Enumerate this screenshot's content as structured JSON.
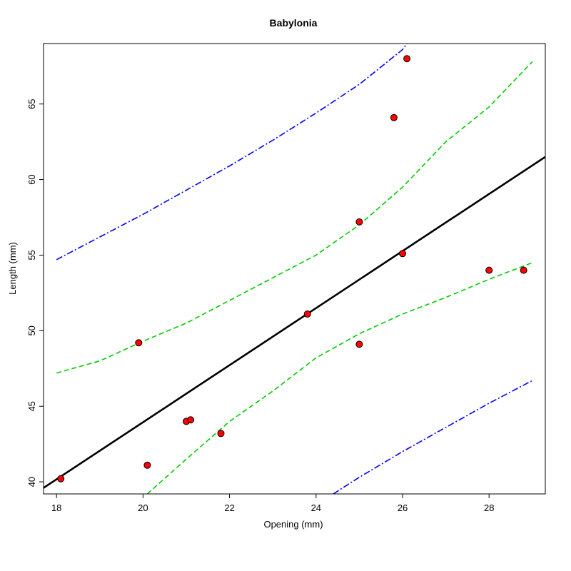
{
  "chart_data": {
    "type": "scatter",
    "title": "Babylonia",
    "xlabel": "Opening (mm)",
    "ylabel": "Length (mm)",
    "xlim": [
      17.7,
      29.3
    ],
    "ylim": [
      39.2,
      69.0
    ],
    "xticks": [
      18,
      20,
      22,
      24,
      26,
      28
    ],
    "yticks": [
      40,
      45,
      50,
      55,
      60,
      65
    ],
    "grid": false,
    "colors": {
      "points_fill": "#ff0000",
      "points_stroke": "#000000",
      "fit_line": "#000000",
      "confidence_band": "#00cc00",
      "prediction_band": "#0000ff"
    },
    "series": [
      {
        "kind": "points",
        "x": [
          18.1,
          19.9,
          20.1,
          21.0,
          21.1,
          21.8,
          23.8,
          25.0,
          25.0,
          25.8,
          26.0,
          26.1,
          28.0,
          28.8
        ],
        "y": [
          40.2,
          49.2,
          41.1,
          44.0,
          44.1,
          43.2,
          51.1,
          49.1,
          57.2,
          64.1,
          55.1,
          68.0,
          54.0,
          54.0
        ]
      },
      {
        "kind": "fit",
        "x": [
          17.7,
          29.3
        ],
        "y": [
          39.6,
          61.5
        ]
      },
      {
        "kind": "confidence_upper",
        "x": [
          18.0,
          19.0,
          20.0,
          21.0,
          22.0,
          23.0,
          24.0,
          25.0,
          26.0,
          27.0,
          28.0,
          29.0
        ],
        "y": [
          47.2,
          48.0,
          49.3,
          50.5,
          52.0,
          53.5,
          55.0,
          57.0,
          59.5,
          62.5,
          64.8,
          67.8
        ]
      },
      {
        "kind": "confidence_lower",
        "x": [
          20.1,
          21.0,
          22.0,
          23.0,
          24.0,
          25.0,
          26.0,
          27.0,
          28.0,
          29.0
        ],
        "y": [
          39.2,
          41.5,
          44.0,
          46.0,
          48.2,
          49.8,
          51.1,
          52.2,
          53.4,
          54.5
        ]
      },
      {
        "kind": "prediction_upper",
        "x": [
          18.0,
          19.0,
          20.0,
          21.0,
          22.0,
          23.0,
          24.0,
          25.0,
          26.0,
          26.1
        ],
        "y": [
          54.7,
          56.2,
          57.7,
          59.3,
          60.9,
          62.6,
          64.4,
          66.3,
          68.6,
          69.0
        ]
      },
      {
        "kind": "prediction_lower",
        "x": [
          24.4,
          25.0,
          26.0,
          27.0,
          28.0,
          29.0
        ],
        "y": [
          39.2,
          40.3,
          42.0,
          43.6,
          45.2,
          46.7
        ]
      }
    ]
  }
}
